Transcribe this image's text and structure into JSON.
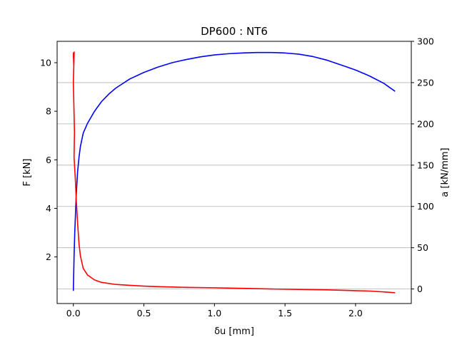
{
  "chart_data": {
    "type": "line",
    "title": "DP600 : NT6",
    "xlabel": "δu [mm]",
    "ylabel_left": "F [kN]",
    "ylabel_right": "a [kN/mm]",
    "xlim": [
      -0.115,
      2.395
    ],
    "ylim_left": [
      0.08,
      10.88
    ],
    "ylim_right": [
      -17.6,
      300
    ],
    "x_ticks": [
      0.0,
      0.5,
      1.0,
      1.5,
      2.0
    ],
    "x_tick_labels": [
      "0.0",
      "0.5",
      "1.0",
      "1.5",
      "2.0"
    ],
    "y_left_ticks": [
      2,
      4,
      6,
      8,
      10
    ],
    "y_left_tick_labels": [
      "2",
      "4",
      "6",
      "8",
      "10"
    ],
    "y_right_ticks": [
      0,
      50,
      100,
      150,
      200,
      250,
      300
    ],
    "y_right_tick_labels": [
      "0",
      "50",
      "100",
      "150",
      "200",
      "250",
      "300"
    ],
    "grid": "horizontal lines at right-axis ticks",
    "series": [
      {
        "axis": "left",
        "color": "#0000ff",
        "x": [
          0.0,
          0.005,
          0.01,
          0.02,
          0.03,
          0.04,
          0.05,
          0.07,
          0.1,
          0.15,
          0.2,
          0.25,
          0.3,
          0.4,
          0.5,
          0.6,
          0.7,
          0.8,
          0.9,
          1.0,
          1.1,
          1.2,
          1.3,
          1.4,
          1.5,
          1.6,
          1.7,
          1.8,
          1.9,
          2.0,
          2.1,
          2.2,
          2.28
        ],
        "values": [
          0.6,
          2.0,
          3.0,
          4.5,
          5.5,
          6.1,
          6.55,
          7.1,
          7.5,
          8.0,
          8.4,
          8.7,
          8.95,
          9.33,
          9.6,
          9.82,
          10.0,
          10.13,
          10.24,
          10.32,
          10.37,
          10.4,
          10.42,
          10.42,
          10.4,
          10.35,
          10.25,
          10.1,
          9.9,
          9.7,
          9.45,
          9.15,
          8.82
        ]
      },
      {
        "axis": "right",
        "color": "#ff0000",
        "x": [
          0.0,
          0.0,
          0.003,
          0.006,
          0.0,
          0.004,
          0.008,
          0.005,
          0.01,
          0.015,
          0.02,
          0.03,
          0.04,
          0.05,
          0.07,
          0.1,
          0.15,
          0.2,
          0.3,
          0.4,
          0.5,
          0.6,
          0.8,
          1.0,
          1.2,
          1.4,
          1.6,
          1.8,
          2.0,
          2.1,
          2.2,
          2.28
        ],
        "values": [
          280,
          286,
          270,
          287,
          250,
          220,
          190,
          160,
          145,
          130,
          110,
          80,
          55,
          40,
          25,
          17,
          11,
          8,
          5.5,
          4.5,
          3.5,
          2.8,
          2.0,
          1.5,
          0.8,
          0.0,
          -0.5,
          -1.0,
          -2.0,
          -2.5,
          -3.5,
          -4.5
        ]
      }
    ]
  }
}
